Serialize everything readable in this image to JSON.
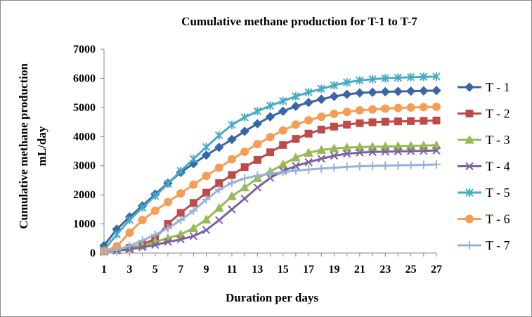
{
  "chart_data": {
    "type": "line",
    "title": "Cumulative methane production for T-1 to T-7",
    "xlabel": "Duration per days",
    "ylabel_line1": "Cumulative methane production",
    "ylabel_line2": "mL/day",
    "xlim": [
      1,
      27
    ],
    "ylim": [
      0,
      7000
    ],
    "x_ticks": [
      1,
      3,
      5,
      7,
      9,
      11,
      13,
      15,
      17,
      19,
      21,
      23,
      25,
      27
    ],
    "y_ticks": [
      0,
      1000,
      2000,
      3000,
      4000,
      5000,
      6000,
      7000
    ],
    "legend_position": "right",
    "x": [
      1,
      2,
      3,
      4,
      5,
      6,
      7,
      8,
      9,
      10,
      11,
      12,
      13,
      14,
      15,
      16,
      17,
      18,
      19,
      20,
      21,
      22,
      23,
      24,
      25,
      26,
      27
    ],
    "series": [
      {
        "name": "T - 1",
        "color": "#3A66A7",
        "marker": "diamond",
        "values": [
          250,
          820,
          1240,
          1620,
          2020,
          2400,
          2770,
          3070,
          3360,
          3630,
          3900,
          4180,
          4440,
          4680,
          4870,
          5040,
          5170,
          5280,
          5380,
          5450,
          5500,
          5520,
          5540,
          5550,
          5560,
          5570,
          5580
        ]
      },
      {
        "name": "T - 2",
        "color": "#BE4B48",
        "marker": "square",
        "values": [
          80,
          110,
          180,
          280,
          500,
          1000,
          1380,
          1720,
          2070,
          2400,
          2680,
          2950,
          3200,
          3460,
          3710,
          3920,
          4100,
          4240,
          4340,
          4410,
          4460,
          4490,
          4510,
          4520,
          4530,
          4540,
          4550
        ]
      },
      {
        "name": "T - 3",
        "color": "#98B954",
        "marker": "triangle",
        "values": [
          60,
          110,
          170,
          260,
          380,
          510,
          640,
          850,
          1150,
          1550,
          1950,
          2250,
          2570,
          2800,
          3040,
          3280,
          3440,
          3540,
          3590,
          3620,
          3640,
          3650,
          3660,
          3670,
          3680,
          3690,
          3700
        ]
      },
      {
        "name": "T - 4",
        "color": "#7D60A0",
        "marker": "x",
        "values": [
          40,
          80,
          130,
          200,
          280,
          380,
          470,
          580,
          790,
          1130,
          1500,
          1870,
          2250,
          2580,
          2820,
          2990,
          3120,
          3240,
          3340,
          3410,
          3450,
          3470,
          3480,
          3490,
          3500,
          3510,
          3520
        ]
      },
      {
        "name": "T - 5",
        "color": "#46AAC5",
        "marker": "star",
        "values": [
          100,
          640,
          1140,
          1560,
          1960,
          2380,
          2820,
          3230,
          3640,
          4040,
          4400,
          4660,
          4870,
          5060,
          5220,
          5380,
          5520,
          5640,
          5760,
          5860,
          5930,
          5970,
          6000,
          6020,
          6040,
          6050,
          6060
        ]
      },
      {
        "name": "T - 6",
        "color": "#F59D56",
        "marker": "circle",
        "values": [
          60,
          230,
          700,
          1130,
          1450,
          1750,
          2050,
          2350,
          2650,
          2930,
          3220,
          3480,
          3740,
          3980,
          4210,
          4410,
          4560,
          4680,
          4780,
          4850,
          4900,
          4930,
          4960,
          4980,
          5000,
          5010,
          5020
        ]
      },
      {
        "name": "T - 7",
        "color": "#95B3D7",
        "marker": "plus",
        "values": [
          60,
          110,
          250,
          430,
          630,
          850,
          1130,
          1450,
          1840,
          2180,
          2410,
          2560,
          2660,
          2720,
          2780,
          2830,
          2870,
          2900,
          2930,
          2960,
          2980,
          2990,
          3000,
          3010,
          3020,
          3030,
          3040
        ]
      }
    ]
  }
}
